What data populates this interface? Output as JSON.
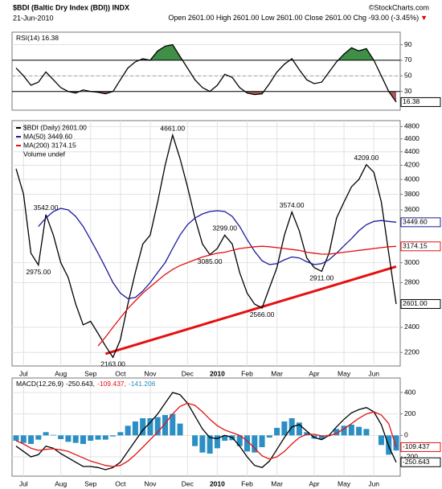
{
  "header": {
    "symbol": "$BDI (Baltic Dry Index (BDI)) INDX",
    "source": "©StockCharts.com",
    "date": "21-Jun-2010",
    "quote": "Open 2601.00 High 2601.00 Low 2601.00 Close 2601.00 Chg -93.00 (-3.45%)",
    "direction": "▼"
  },
  "chart_data": [
    {
      "type": "line",
      "title": "RSI(14) 16.38",
      "ylim": [
        6,
        106
      ],
      "yticks": [
        30,
        50,
        70,
        90
      ],
      "grid": true,
      "log_scale": false,
      "reference_lines": [
        30,
        50,
        70
      ],
      "fill_above": "#3f8f47",
      "fill_below": "#a35a5a",
      "series": [
        {
          "name": "RSI(14)",
          "color": "#000000",
          "values": [
            60,
            50,
            38,
            42,
            55,
            45,
            35,
            30,
            28,
            32,
            30,
            29,
            27,
            30,
            45,
            60,
            68,
            72,
            70,
            82,
            88,
            90,
            75,
            60,
            45,
            35,
            30,
            38,
            52,
            48,
            35,
            28,
            26,
            27,
            40,
            55,
            65,
            72,
            58,
            45,
            40,
            42,
            55,
            68,
            78,
            86,
            82,
            85,
            70,
            50,
            30,
            16.38
          ],
          "value_labels": [
            null,
            null,
            null,
            null,
            null,
            null,
            null,
            null,
            null,
            null,
            null,
            null,
            null,
            null,
            null,
            null,
            null,
            null,
            null,
            null,
            null,
            null,
            null,
            null,
            null,
            null,
            null,
            null,
            null,
            null,
            null,
            null,
            null,
            null,
            null,
            null,
            null,
            null,
            null,
            null,
            null,
            null,
            null,
            null,
            null,
            null,
            null,
            null,
            null,
            null,
            null,
            "16.38"
          ]
        }
      ]
    },
    {
      "type": "line",
      "ylim": [
        2100,
        4900
      ],
      "yticks": [
        2200,
        2400,
        2800,
        3000,
        3600,
        3800,
        4000,
        4200,
        4400,
        4600,
        4800
      ],
      "grid": true,
      "log_scale": true,
      "categories": [
        null,
        "Jul",
        null,
        null,
        null,
        null,
        "Aug",
        null,
        null,
        null,
        "Sep",
        null,
        null,
        null,
        "Oct",
        null,
        null,
        null,
        "Nov",
        null,
        null,
        null,
        null,
        "Dec",
        null,
        null,
        null,
        "2010",
        null,
        null,
        null,
        "Feb",
        null,
        null,
        null,
        "Mar",
        null,
        null,
        null,
        null,
        "Apr",
        null,
        null,
        null,
        "May",
        null,
        null,
        null,
        "Jun",
        null,
        null,
        null
      ],
      "legend_extra": "Volume undef",
      "trendline": {
        "x": [
          12,
          51
        ],
        "values": [
          2190,
          2960
        ],
        "color": "#e41010"
      },
      "series": [
        {
          "name": "$BDI (Daily) 2601.00",
          "color": "#000000",
          "values": [
            4150,
            3800,
            3100,
            2975,
            3542,
            3300,
            3000,
            2850,
            2600,
            2420,
            2450,
            2350,
            2250,
            2163,
            2300,
            2600,
            2900,
            3200,
            3300,
            3700,
            4200,
            4661,
            4300,
            3900,
            3500,
            3200,
            3085,
            3150,
            3299,
            3200,
            2900,
            2700,
            2600,
            2566,
            2750,
            2950,
            3300,
            3574,
            3350,
            3050,
            2950,
            2911,
            3100,
            3500,
            3700,
            3900,
            4000,
            4209,
            4100,
            3700,
            3100,
            2601
          ],
          "value_labels": [
            null,
            null,
            null,
            "2975.00",
            "3542.00",
            null,
            null,
            null,
            null,
            null,
            null,
            null,
            null,
            "2163.00",
            null,
            null,
            null,
            null,
            null,
            null,
            null,
            "4661.00",
            null,
            null,
            null,
            null,
            "3085.00",
            null,
            "3299.00",
            null,
            null,
            null,
            null,
            "2566.00",
            null,
            null,
            null,
            "3574.00",
            null,
            null,
            null,
            "2911.00",
            null,
            null,
            null,
            null,
            null,
            "4209.00",
            null,
            null,
            null,
            "2601.00"
          ]
        },
        {
          "name": "MA(50) 3449.60",
          "color": "#1a1a9c",
          "values": [
            null,
            null,
            null,
            3400,
            3500,
            3580,
            3620,
            3600,
            3520,
            3400,
            3250,
            3100,
            2950,
            2800,
            2700,
            2650,
            2660,
            2720,
            2800,
            2900,
            3000,
            3150,
            3300,
            3420,
            3500,
            3550,
            3580,
            3590,
            3580,
            3520,
            3400,
            3250,
            3120,
            3020,
            2980,
            2990,
            3030,
            3060,
            3050,
            3010,
            2980,
            2990,
            3030,
            3100,
            3180,
            3260,
            3350,
            3420,
            3460,
            3470,
            3460,
            3449.6
          ],
          "value_labels": [
            null,
            null,
            null,
            null,
            null,
            null,
            null,
            null,
            null,
            null,
            null,
            null,
            null,
            null,
            null,
            null,
            null,
            null,
            null,
            null,
            null,
            null,
            null,
            null,
            null,
            null,
            null,
            null,
            null,
            null,
            null,
            null,
            null,
            null,
            null,
            null,
            null,
            null,
            null,
            null,
            null,
            null,
            null,
            null,
            null,
            null,
            null,
            null,
            null,
            null,
            null,
            "3449.60"
          ]
        },
        {
          "name": "MA(200) 3174.15",
          "color": "#e41010",
          "values": [
            null,
            null,
            null,
            null,
            null,
            null,
            null,
            null,
            null,
            null,
            null,
            2250,
            2320,
            2400,
            2480,
            2560,
            2630,
            2700,
            2760,
            2820,
            2880,
            2930,
            2970,
            3000,
            3030,
            3060,
            3080,
            3100,
            3110,
            3130,
            3150,
            3160,
            3170,
            3175,
            3170,
            3160,
            3150,
            3140,
            3130,
            3110,
            3100,
            3090,
            3090,
            3100,
            3110,
            3120,
            3130,
            3140,
            3150,
            3160,
            3170,
            3174.15
          ],
          "value_labels": [
            null,
            null,
            null,
            null,
            null,
            null,
            null,
            null,
            null,
            null,
            null,
            null,
            null,
            null,
            null,
            null,
            null,
            null,
            null,
            null,
            null,
            null,
            null,
            null,
            null,
            null,
            null,
            null,
            null,
            null,
            null,
            null,
            null,
            null,
            null,
            null,
            null,
            null,
            null,
            null,
            null,
            null,
            null,
            null,
            null,
            null,
            null,
            null,
            null,
            null,
            null,
            "3174.15"
          ]
        }
      ]
    },
    {
      "type": "line",
      "title": "MACD(12,26,9)",
      "ylim": [
        -380,
        535
      ],
      "yticks": [
        -200,
        0,
        200,
        400
      ],
      "grid": true,
      "log_scale": false,
      "categories": [
        null,
        "Jul",
        null,
        null,
        null,
        null,
        "Aug",
        null,
        null,
        null,
        "Sep",
        null,
        null,
        null,
        "Oct",
        null,
        null,
        null,
        "Nov",
        null,
        null,
        null,
        null,
        "Dec",
        null,
        null,
        null,
        "2010",
        null,
        null,
        null,
        "Feb",
        null,
        null,
        null,
        "Mar",
        null,
        null,
        null,
        null,
        "Apr",
        null,
        null,
        null,
        "May",
        null,
        null,
        null,
        "Jun",
        null,
        null,
        null
      ],
      "series": [
        {
          "name": "-141.206",
          "color": "#2b8fc4",
          "style": "bar",
          "values": [
            -50,
            -70,
            -80,
            -40,
            30,
            5,
            -35,
            -60,
            -70,
            -80,
            -50,
            -40,
            -40,
            -10,
            30,
            90,
            130,
            160,
            160,
            170,
            190,
            200,
            110,
            0,
            -100,
            -160,
            -170,
            -120,
            -50,
            -45,
            -100,
            -150,
            -160,
            -110,
            -20,
            70,
            130,
            160,
            120,
            30,
            -30,
            -35,
            5,
            60,
            90,
            100,
            80,
            60,
            0,
            -90,
            -180,
            -141.206
          ]
        },
        {
          "name": "-250.643,",
          "color": "#000000",
          "values": [
            -100,
            -150,
            -200,
            -180,
            -100,
            -120,
            -170,
            -210,
            -250,
            -290,
            -290,
            -300,
            -320,
            -300,
            -250,
            -150,
            -50,
            50,
            120,
            200,
            300,
            400,
            380,
            300,
            180,
            60,
            -20,
            -30,
            0,
            -20,
            -100,
            -200,
            -280,
            -300,
            -240,
            -130,
            -20,
            80,
            100,
            40,
            -20,
            -40,
            0,
            80,
            150,
            210,
            240,
            260,
            220,
            100,
            -100,
            -250.643
          ],
          "value_labels": [
            null,
            null,
            null,
            null,
            null,
            null,
            null,
            null,
            null,
            null,
            null,
            null,
            null,
            null,
            null,
            null,
            null,
            null,
            null,
            null,
            null,
            null,
            null,
            null,
            null,
            null,
            null,
            null,
            null,
            null,
            null,
            null,
            null,
            null,
            null,
            null,
            null,
            null,
            null,
            null,
            null,
            null,
            null,
            null,
            null,
            null,
            null,
            null,
            null,
            null,
            null,
            "-250.643"
          ]
        },
        {
          "name": "-109.437,",
          "color": "#e41010",
          "values": [
            -50,
            -80,
            -120,
            -140,
            -130,
            -125,
            -135,
            -150,
            -180,
            -210,
            -240,
            -260,
            -280,
            -290,
            -280,
            -240,
            -180,
            -110,
            -40,
            30,
            110,
            200,
            270,
            300,
            280,
            220,
            150,
            90,
            50,
            25,
            0,
            -50,
            -120,
            -190,
            -220,
            -200,
            -150,
            -80,
            -20,
            10,
            10,
            -5,
            -5,
            20,
            60,
            110,
            160,
            200,
            220,
            190,
            110,
            -109.437
          ],
          "value_labels": [
            null,
            null,
            null,
            null,
            null,
            null,
            null,
            null,
            null,
            null,
            null,
            null,
            null,
            null,
            null,
            null,
            null,
            null,
            null,
            null,
            null,
            null,
            null,
            null,
            null,
            null,
            null,
            null,
            null,
            null,
            null,
            null,
            null,
            null,
            null,
            null,
            null,
            null,
            null,
            null,
            null,
            null,
            null,
            null,
            null,
            null,
            null,
            null,
            null,
            null,
            null,
            "-109.437"
          ]
        }
      ]
    }
  ]
}
